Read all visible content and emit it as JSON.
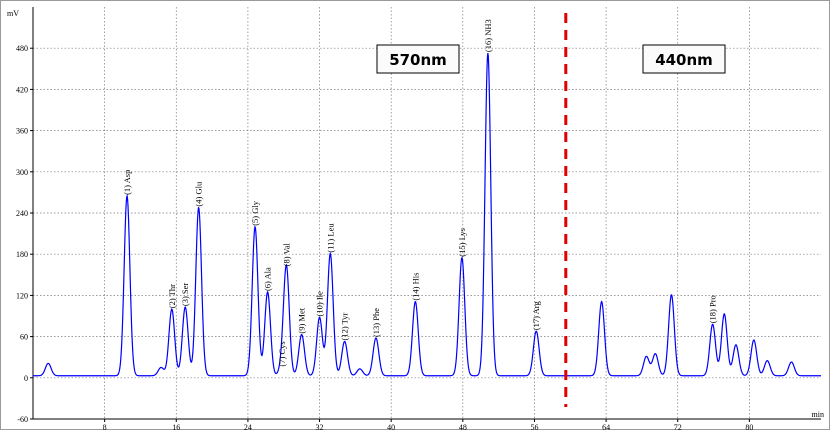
{
  "chart_data": {
    "type": "line",
    "ylabel": "mV",
    "xlabel": "min",
    "xlim": [
      0,
      88
    ],
    "ylim": [
      -60,
      540
    ],
    "x_ticks": [
      8,
      16,
      24,
      32,
      40,
      48,
      56,
      64,
      72,
      80
    ],
    "y_ticks": [
      -60,
      0,
      60,
      120,
      180,
      240,
      300,
      360,
      420,
      480
    ],
    "grid": true,
    "colors": {
      "trace": "#0000ff",
      "divider": "#e00000",
      "grid": "#7a7a7a"
    },
    "divider_x": 59.5,
    "wavelength_labels": [
      "570nm",
      "440nm"
    ],
    "peaks": [
      {
        "label": "(1) Asp",
        "x": 10.5,
        "y": 262
      },
      {
        "label": "(2) Thr",
        "x": 15.5,
        "y": 97
      },
      {
        "label": "(3) Ser",
        "x": 17.0,
        "y": 100
      },
      {
        "label": "(4) Glu",
        "x": 18.5,
        "y": 245
      },
      {
        "label": "(5) Gly",
        "x": 24.8,
        "y": 217
      },
      {
        "label": "(6) Ala",
        "x": 26.2,
        "y": 122
      },
      {
        "label": "(7) Cys",
        "x": 27.8,
        "y": 12
      },
      {
        "label": "(8) Val",
        "x": 28.3,
        "y": 158
      },
      {
        "label": "(9) Met",
        "x": 30.0,
        "y": 60
      },
      {
        "label": "(10) Ile",
        "x": 32.0,
        "y": 85
      },
      {
        "label": "(11) Leu",
        "x": 33.2,
        "y": 178
      },
      {
        "label": "(12) Tyr",
        "x": 34.8,
        "y": 50
      },
      {
        "label": "(13) Phe",
        "x": 38.3,
        "y": 55
      },
      {
        "label": "(14) His",
        "x": 42.7,
        "y": 108
      },
      {
        "label": "(15) Lys",
        "x": 47.9,
        "y": 172
      },
      {
        "label": "(16) NH3",
        "x": 50.8,
        "y": 470
      },
      {
        "label": "(17) Arg",
        "x": 56.2,
        "y": 65
      },
      {
        "label": "(18) Pro",
        "x": 75.9,
        "y": 75
      }
    ],
    "minor_peaks": [
      {
        "x": 1.7,
        "y": 18
      },
      {
        "x": 14.3,
        "y": 12
      },
      {
        "x": 36.5,
        "y": 10
      },
      {
        "x": 63.5,
        "y": 108
      },
      {
        "x": 68.5,
        "y": 28
      },
      {
        "x": 69.5,
        "y": 32
      },
      {
        "x": 71.3,
        "y": 118
      },
      {
        "x": 77.2,
        "y": 90
      },
      {
        "x": 78.5,
        "y": 45
      },
      {
        "x": 80.5,
        "y": 52
      },
      {
        "x": 82.0,
        "y": 22
      },
      {
        "x": 84.7,
        "y": 20
      }
    ]
  }
}
